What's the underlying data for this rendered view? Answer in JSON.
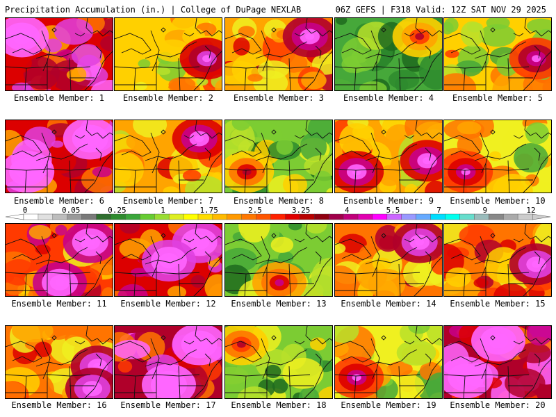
{
  "header": {
    "left_title": "Precipitation Accumulation (in.) | College of DuPage NEXLAB",
    "right_title": "06Z GEFS | F318 Valid: 12Z SAT NOV 29 2025"
  },
  "caption_prefix": "Ensemble Member:",
  "chart_data": {
    "type": "heatmap",
    "title": "Precipitation Accumulation (in.)",
    "source": "College of DuPage NEXLAB",
    "run": "06Z GEFS | F318 Valid: 12Z SAT NOV 29 2025",
    "units": "in.",
    "colorbar": {
      "tick_labels": [
        "0",
        "0.05",
        "0.25",
        "1",
        "1.75",
        "2.5",
        "3.25",
        "4",
        "5.5",
        "7",
        "9",
        "12"
      ],
      "tick_values": [
        0,
        0.05,
        0.25,
        1,
        1.75,
        2.5,
        3.25,
        4,
        5.5,
        7,
        9,
        12
      ],
      "colors": [
        "#ffffff",
        "#e0e0e0",
        "#bdbdbd",
        "#9a9a9a",
        "#7a7a7a",
        "#2f6f2f",
        "#2e8b2e",
        "#3aa63a",
        "#66cc33",
        "#99dd33",
        "#ddee22",
        "#ffff00",
        "#ffdd00",
        "#ffbb00",
        "#ff9900",
        "#ff7700",
        "#ff5500",
        "#ff2200",
        "#e00000",
        "#b80000",
        "#900010",
        "#a0004a",
        "#c0007a",
        "#e000b0",
        "#ff00ff",
        "#cc66ff",
        "#9999ff",
        "#66aaff",
        "#00ddff",
        "#00ffee",
        "#66ddcc",
        "#99bbbb",
        "#888888",
        "#aaaaaa",
        "#cccccc"
      ]
    },
    "members": [
      {
        "member": 1,
        "level": 0.72,
        "hotspots": [
          "northwest"
        ]
      },
      {
        "member": 2,
        "level": 0.45,
        "hotspots": [
          "east"
        ]
      },
      {
        "member": 3,
        "level": 0.52,
        "hotspots": [
          "northeast"
        ]
      },
      {
        "member": 4,
        "level": 0.18,
        "hotspots": [
          "northeast"
        ]
      },
      {
        "member": 5,
        "level": 0.4,
        "hotspots": [
          "east"
        ]
      },
      {
        "member": 6,
        "level": 0.72,
        "hotspots": [
          "northeast",
          "southwest"
        ]
      },
      {
        "member": 7,
        "level": 0.5,
        "hotspots": [
          "northeast"
        ]
      },
      {
        "member": 8,
        "level": 0.22,
        "hotspots": [
          "southwest"
        ]
      },
      {
        "member": 9,
        "level": 0.5,
        "hotspots": [
          "southwest",
          "east"
        ]
      },
      {
        "member": 10,
        "level": 0.38,
        "hotspots": [
          "southwest"
        ]
      },
      {
        "member": 11,
        "level": 0.6,
        "hotspots": [
          "northeast",
          "south"
        ]
      },
      {
        "member": 12,
        "level": 0.7,
        "hotspots": [
          "northeast",
          "center"
        ]
      },
      {
        "member": 13,
        "level": 0.25,
        "hotspots": [
          "south"
        ]
      },
      {
        "member": 14,
        "level": 0.55,
        "hotspots": [
          "northeast"
        ]
      },
      {
        "member": 15,
        "level": 0.55,
        "hotspots": [
          "east"
        ]
      },
      {
        "member": 16,
        "level": 0.55,
        "hotspots": [
          "east",
          "southeast"
        ]
      },
      {
        "member": 17,
        "level": 0.75,
        "hotspots": [
          "northeast",
          "south"
        ]
      },
      {
        "member": 18,
        "level": 0.2,
        "hotspots": [
          "northwest"
        ]
      },
      {
        "member": 19,
        "level": 0.38,
        "hotspots": [
          "southwest"
        ]
      },
      {
        "member": 20,
        "level": 0.78,
        "hotspots": [
          "north",
          "southwest"
        ]
      }
    ]
  }
}
